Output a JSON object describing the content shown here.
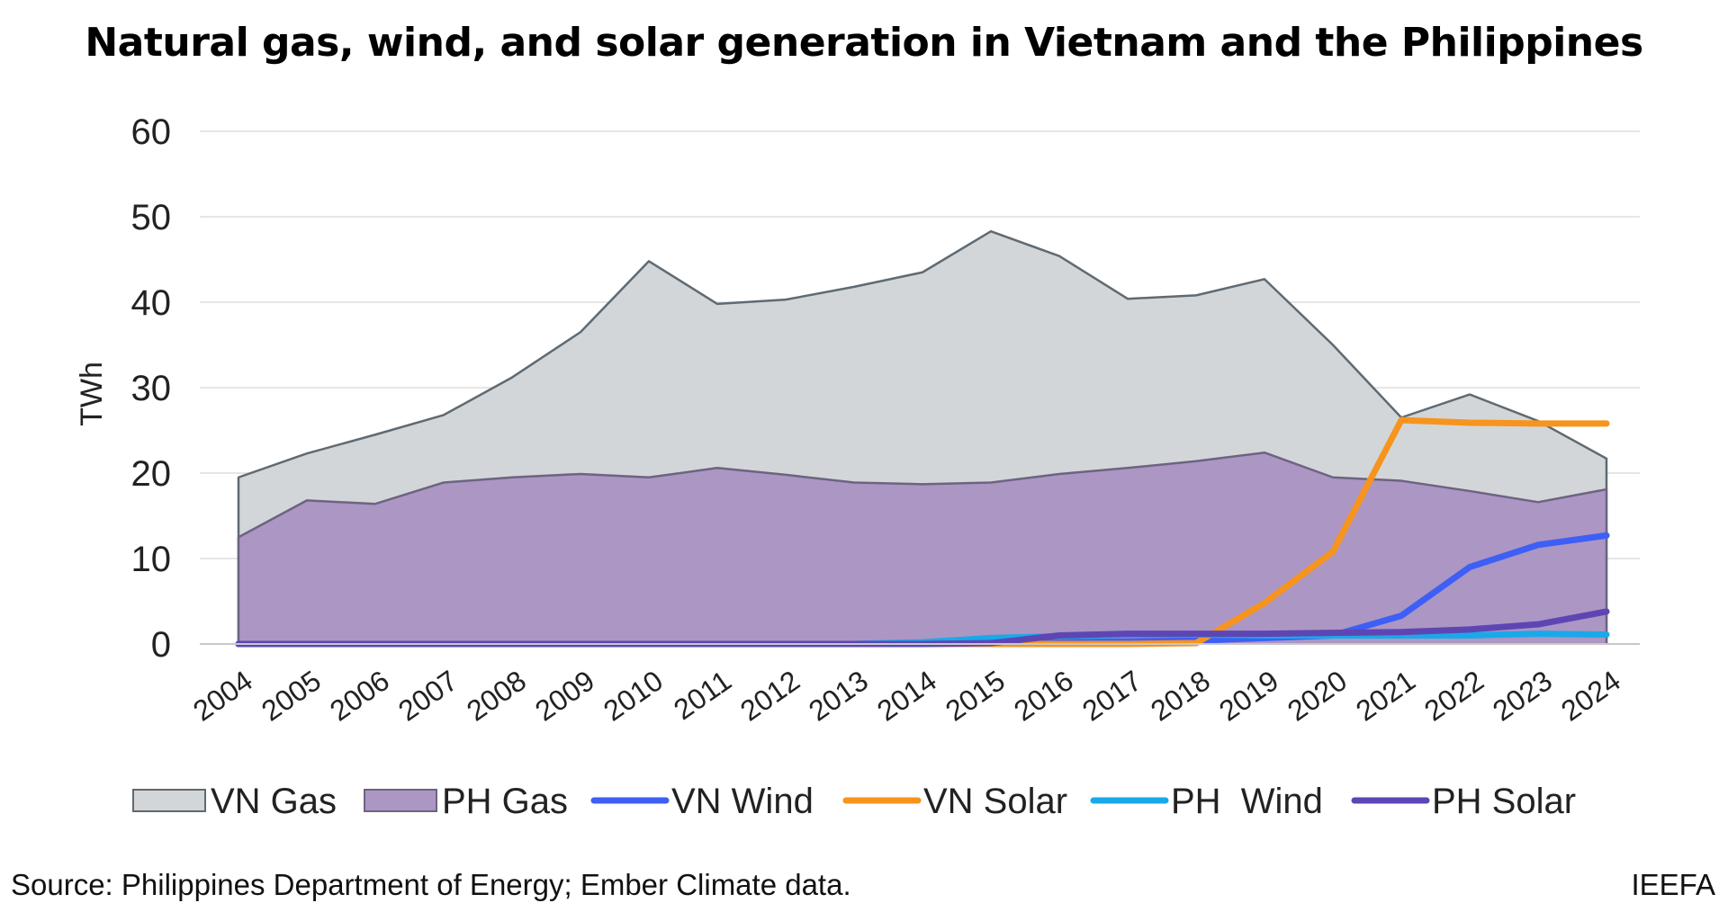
{
  "chart_data": {
    "type": "area",
    "title": "Natural gas, wind, and solar generation in Vietnam and the Philippines",
    "ylabel": "TWh",
    "xlabel": "",
    "ylim": [
      0,
      60
    ],
    "yticks": [
      0,
      10,
      20,
      30,
      40,
      50,
      60
    ],
    "grid": true,
    "legend_position": "bottom",
    "x": [
      "2004",
      "2005",
      "2006",
      "2007",
      "2008",
      "2009",
      "2010",
      "2011",
      "2012",
      "2013",
      "2014",
      "2015",
      "2016",
      "2017",
      "2018",
      "2019",
      "2020",
      "2021",
      "2022",
      "2023",
      "2024"
    ],
    "series": [
      {
        "name": "VN Gas",
        "kind": "area",
        "color": "#d3d6d9",
        "stroke": "#5f6a72",
        "values": [
          19.5,
          22.3,
          24.5,
          26.8,
          31.2,
          36.5,
          44.8,
          39.8,
          40.3,
          41.8,
          43.5,
          48.3,
          45.4,
          40.4,
          40.8,
          42.7,
          35.0,
          26.5,
          29.2,
          26.1,
          21.7
        ]
      },
      {
        "name": "PH Gas",
        "kind": "area",
        "color": "#ac96c4",
        "stroke": "#6c6480",
        "values": [
          12.5,
          16.8,
          16.4,
          18.9,
          19.5,
          19.9,
          19.5,
          20.6,
          19.8,
          18.9,
          18.7,
          18.9,
          19.9,
          20.6,
          21.4,
          22.4,
          19.5,
          19.1,
          17.9,
          16.6,
          18.1
        ]
      },
      {
        "name": "VN Wind",
        "kind": "line",
        "color": "#3e5ff5",
        "values": [
          0,
          0,
          0,
          0,
          0,
          0,
          0,
          0,
          0,
          0,
          0.1,
          0.1,
          0.2,
          0.3,
          0.4,
          0.7,
          1.0,
          3.3,
          9.0,
          11.6,
          12.7
        ]
      },
      {
        "name": "VN Solar",
        "kind": "line",
        "color": "#f7941d",
        "values": [
          0,
          0,
          0,
          0,
          0,
          0,
          0,
          0,
          0,
          0,
          0,
          0,
          0,
          0,
          0.1,
          4.8,
          10.8,
          26.2,
          25.9,
          25.8,
          25.8
        ]
      },
      {
        "name": "PH  Wind",
        "kind": "line",
        "color": "#1aa9e8",
        "values": [
          0,
          0,
          0,
          0,
          0,
          0,
          0,
          0,
          0,
          0,
          0.2,
          0.7,
          0.9,
          1.1,
          1.1,
          1.0,
          1.0,
          1.0,
          1.0,
          1.2,
          1.1
        ]
      },
      {
        "name": "PH Solar",
        "kind": "line",
        "color": "#5d46b4",
        "values": [
          0,
          0,
          0,
          0,
          0,
          0,
          0,
          0,
          0,
          0,
          0,
          0.1,
          1.0,
          1.2,
          1.2,
          1.2,
          1.3,
          1.4,
          1.7,
          2.3,
          3.8
        ]
      }
    ]
  },
  "footer": {
    "source": "Source: Philippines Department of Energy; Ember Climate data.",
    "brand": "IEEFA"
  }
}
